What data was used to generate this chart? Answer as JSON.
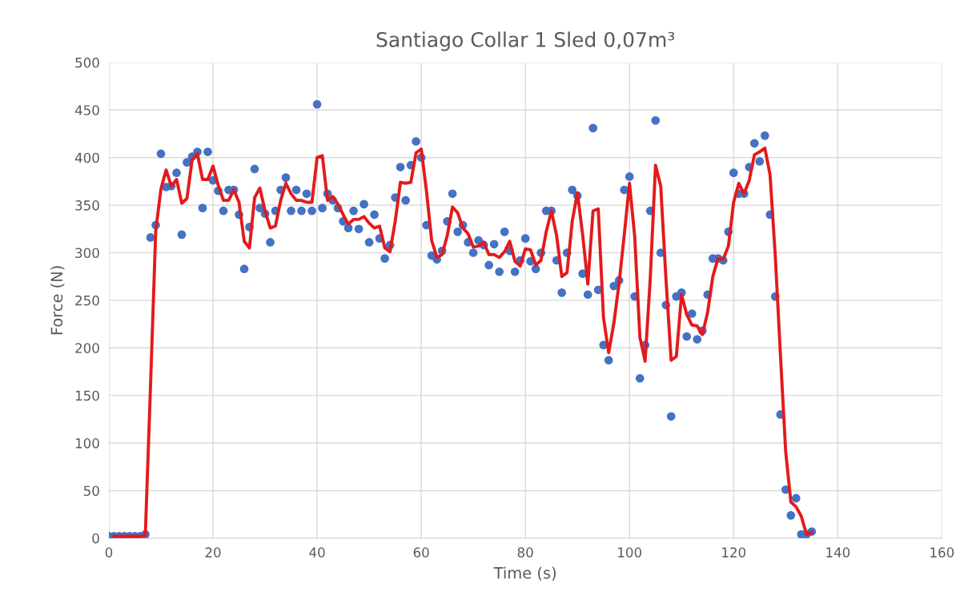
{
  "chart_data": {
    "type": "scatter",
    "title": "Santiago Collar 1 Sled 0,07m³",
    "xlabel": "Time (s)",
    "ylabel": "Force (N)",
    "xlim": [
      0,
      160
    ],
    "xticks": [
      0,
      20,
      40,
      60,
      80,
      100,
      120,
      140,
      160
    ],
    "ylim": [
      0,
      500
    ],
    "yticks": [
      0,
      50,
      100,
      150,
      200,
      250,
      300,
      350,
      400,
      450,
      500
    ],
    "grid": true,
    "legend": false,
    "series": [
      {
        "color": "#4472c4",
        "marker": "circle",
        "x": [
          0,
          1,
          2,
          3,
          4,
          5,
          6,
          7,
          8,
          9,
          10,
          11,
          12,
          13,
          14,
          15,
          16,
          17,
          18,
          19,
          20,
          21,
          22,
          23,
          24,
          25,
          26,
          27,
          28,
          29,
          30,
          31,
          32,
          33,
          34,
          35,
          36,
          37,
          38,
          39,
          40,
          41,
          42,
          43,
          44,
          45,
          46,
          47,
          48,
          49,
          50,
          51,
          52,
          53,
          54,
          55,
          56,
          57,
          58,
          59,
          60,
          61,
          62,
          63,
          64,
          65,
          66,
          67,
          68,
          69,
          70,
          71,
          72,
          73,
          74,
          75,
          76,
          77,
          78,
          79,
          80,
          81,
          82,
          83,
          84,
          85,
          86,
          87,
          88,
          89,
          90,
          91,
          92,
          93,
          94,
          95,
          96,
          97,
          98,
          99,
          100,
          101,
          102,
          103,
          104,
          105,
          106,
          107,
          108,
          109,
          110,
          111,
          112,
          113,
          114,
          115,
          116,
          117,
          118,
          119,
          120,
          121,
          122,
          123,
          124,
          125,
          126,
          127,
          128,
          129,
          130,
          131,
          132,
          133,
          134,
          135
        ],
        "values": [
          2,
          2,
          2,
          2,
          2,
          2,
          2,
          4,
          316,
          329,
          404,
          369,
          370,
          384,
          319,
          395,
          401,
          406,
          347,
          406,
          376,
          365,
          344,
          366,
          366,
          340,
          283,
          327,
          388,
          347,
          341,
          311,
          344,
          366,
          379,
          344,
          366,
          344,
          362,
          344,
          456,
          347,
          362,
          355,
          347,
          333,
          326,
          344,
          325,
          351,
          311,
          340,
          315,
          294,
          308,
          358,
          390,
          355,
          392,
          417,
          400,
          329,
          297,
          293,
          302,
          333,
          362,
          322,
          329,
          311,
          300,
          313,
          308,
          287,
          309,
          280,
          322,
          302,
          280,
          292,
          315,
          291,
          283,
          300,
          344,
          344,
          292,
          258,
          300,
          366,
          360,
          278,
          256,
          431,
          261,
          203,
          187,
          265,
          271,
          366,
          380,
          254,
          168,
          203,
          344,
          439,
          300,
          245,
          128,
          254,
          258,
          212,
          236,
          209,
          218,
          256,
          294,
          294,
          292,
          322,
          384,
          362,
          362,
          390,
          415,
          396,
          423,
          340,
          254,
          130,
          51,
          24,
          42,
          4,
          4,
          7
        ]
      },
      {
        "type": "line",
        "color": "#e31a1c",
        "marker": "none",
        "line_style": "solid",
        "x": [
          1,
          2,
          3,
          4,
          5,
          6,
          7,
          8,
          9,
          10,
          11,
          12,
          13,
          14,
          15,
          16,
          17,
          18,
          19,
          20,
          21,
          22,
          23,
          24,
          25,
          26,
          27,
          28,
          29,
          30,
          31,
          32,
          33,
          34,
          35,
          36,
          37,
          38,
          39,
          40,
          41,
          42,
          43,
          44,
          45,
          46,
          47,
          48,
          49,
          50,
          51,
          52,
          53,
          54,
          55,
          56,
          57,
          58,
          59,
          60,
          61,
          62,
          63,
          64,
          65,
          66,
          67,
          68,
          69,
          70,
          71,
          72,
          73,
          74,
          75,
          76,
          77,
          78,
          79,
          80,
          81,
          82,
          83,
          84,
          85,
          86,
          87,
          88,
          89,
          90,
          91,
          92,
          93,
          94,
          95,
          96,
          97,
          98,
          99,
          100,
          101,
          102,
          103,
          104,
          105,
          106,
          107,
          108,
          109,
          110,
          111,
          112,
          113,
          114,
          115,
          116,
          117,
          118,
          119,
          120,
          121,
          122,
          123,
          124,
          125,
          126,
          127,
          128,
          129,
          130,
          131,
          132,
          133,
          134,
          135
        ],
        "values": [
          2,
          2,
          2,
          2,
          2,
          2,
          3,
          160,
          323,
          367,
          387,
          370,
          377,
          352,
          357,
          398,
          404,
          377,
          377,
          391,
          371,
          355,
          355,
          366,
          353,
          312,
          305,
          358,
          368,
          344,
          326,
          328,
          355,
          373,
          362,
          355,
          355,
          353,
          353,
          400,
          402,
          355,
          359,
          351,
          340,
          330,
          335,
          335,
          338,
          331,
          326,
          328,
          305,
          301,
          333,
          374,
          373,
          374,
          405,
          409,
          365,
          313,
          295,
          298,
          318,
          348,
          342,
          326,
          320,
          306,
          307,
          311,
          298,
          298,
          295,
          301,
          312,
          291,
          286,
          304,
          303,
          287,
          292,
          322,
          344,
          318,
          275,
          279,
          333,
          363,
          319,
          267,
          344,
          346,
          232,
          195,
          226,
          268,
          319,
          373,
          317,
          211,
          186,
          274,
          392,
          370,
          273,
          187,
          191,
          256,
          235,
          224,
          223,
          214,
          237,
          275,
          294,
          293,
          307,
          353,
          373,
          362,
          376,
          403,
          406,
          410,
          382,
          297,
          192,
          91,
          38,
          33,
          23,
          4,
          6
        ]
      }
    ]
  }
}
